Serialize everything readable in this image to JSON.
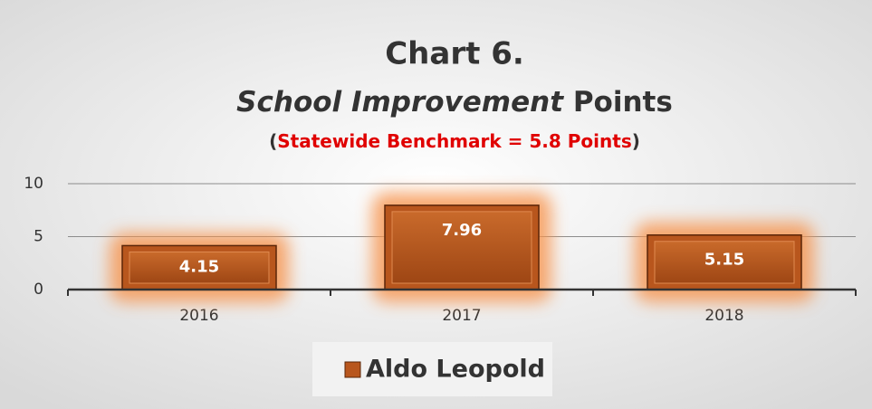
{
  "chart_data": {
    "type": "bar",
    "title": "Chart 6.",
    "title_line2": {
      "italic": "School Improvement",
      "plain": "Points"
    },
    "subtitle": {
      "open": "(",
      "text": "Statewide Benchmark = 5.8 Points",
      "close": ")"
    },
    "categories": [
      "2016",
      "2017",
      "2018"
    ],
    "series": [
      {
        "name": "Aldo Leopold",
        "color": "#b8561d",
        "values": [
          4.15,
          7.96,
          5.15
        ]
      }
    ],
    "ylim": [
      0,
      10
    ],
    "yticks": [
      0,
      5,
      10
    ],
    "grid": true,
    "legend": "bottom"
  }
}
